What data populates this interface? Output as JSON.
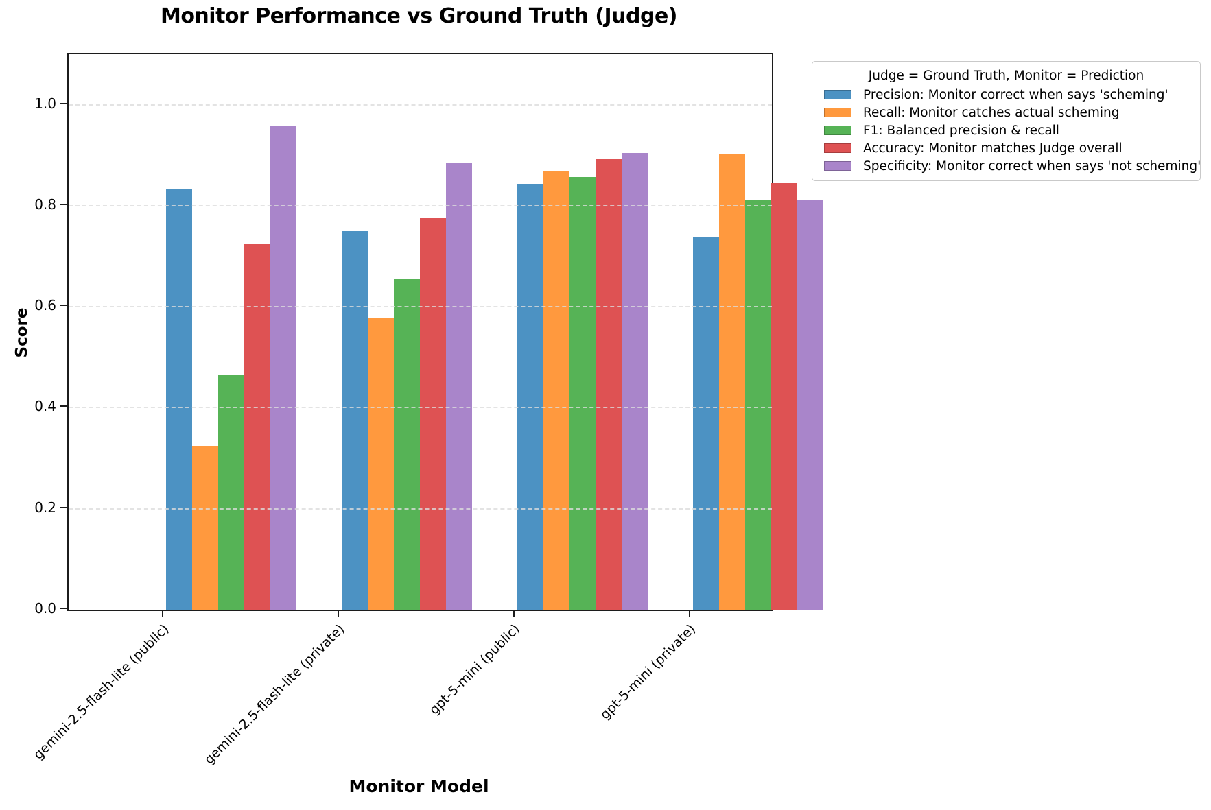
{
  "chart_data": {
    "type": "bar",
    "title": "Monitor Performance vs Ground Truth (Judge)",
    "xlabel": "Monitor Model",
    "ylabel": "Score",
    "ylim": [
      0,
      1.1
    ],
    "ytick_labels": [
      "0.0",
      "0.2",
      "0.4",
      "0.6",
      "0.8",
      "1.0"
    ],
    "grid": "horizontal-dashed-lightgray-drawn-above-bars",
    "categories": [
      "gemini-2.5-flash-lite (public)",
      "gemini-2.5-flash-lite (private)",
      "gpt-5-mini (public)",
      "gpt-5-mini (private)"
    ],
    "series": [
      {
        "key": "precision",
        "name": "Precision: Monitor correct when says 'scheming'",
        "color": "#4C92C3",
        "values": [
          0.833,
          0.75,
          0.843,
          0.737
        ]
      },
      {
        "key": "recall",
        "name": "Recall: Monitor catches actual scheming",
        "color": "#FF993E",
        "values": [
          0.323,
          0.579,
          0.869,
          0.903
        ]
      },
      {
        "key": "f1",
        "name": "F1: Balanced precision & recall",
        "color": "#56B356",
        "values": [
          0.465,
          0.654,
          0.857,
          0.811
        ]
      },
      {
        "key": "accuracy",
        "name": "Accuracy: Monitor matches Judge overall",
        "color": "#DE5253",
        "values": [
          0.724,
          0.775,
          0.892,
          0.845
        ]
      },
      {
        "key": "specificity",
        "name": "Specificity: Monitor correct when says 'not scheming'",
        "color": "#A985CA",
        "values": [
          0.959,
          0.886,
          0.905,
          0.812
        ]
      }
    ],
    "legend": {
      "title": "Judge = Ground Truth, Monitor = Prediction",
      "position": "outside-upper-right"
    }
  }
}
